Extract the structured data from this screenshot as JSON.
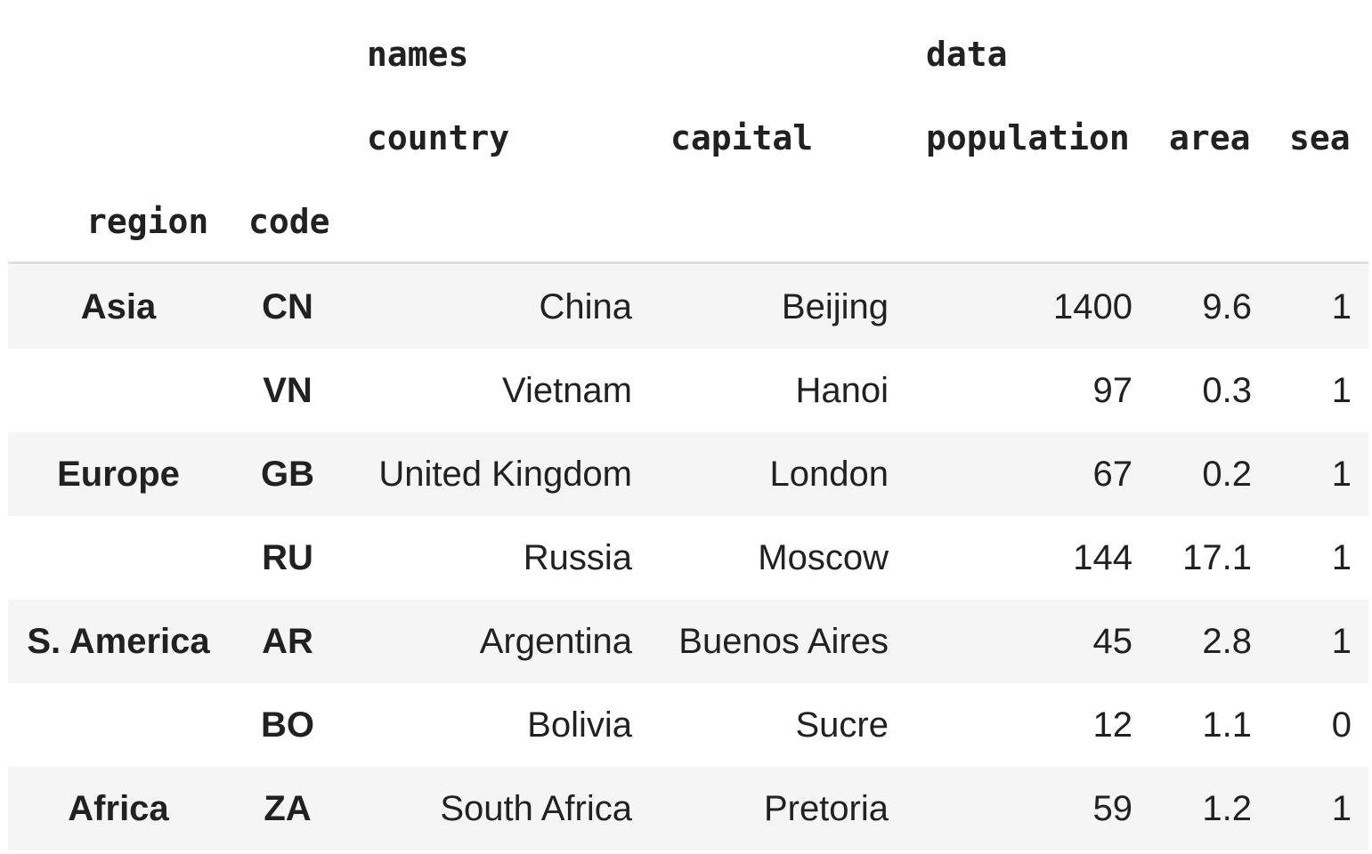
{
  "header": {
    "group_names": "names",
    "group_data": "data",
    "col_country": "country",
    "col_capital": "capital",
    "col_population": "population",
    "col_area": "area",
    "col_sea": "sea",
    "index_region": "region",
    "index_code": "code"
  },
  "rows": [
    {
      "region": "Asia",
      "code": "CN",
      "country": "China",
      "capital": "Beijing",
      "population": "1400",
      "area": "9.6",
      "sea": "1"
    },
    {
      "region": "",
      "code": "VN",
      "country": "Vietnam",
      "capital": "Hanoi",
      "population": "97",
      "area": "0.3",
      "sea": "1"
    },
    {
      "region": "Europe",
      "code": "GB",
      "country": "United Kingdom",
      "capital": "London",
      "population": "67",
      "area": "0.2",
      "sea": "1"
    },
    {
      "region": "",
      "code": "RU",
      "country": "Russia",
      "capital": "Moscow",
      "population": "144",
      "area": "17.1",
      "sea": "1"
    },
    {
      "region": "S. America",
      "code": "AR",
      "country": "Argentina",
      "capital": "Buenos Aires",
      "population": "45",
      "area": "2.8",
      "sea": "1"
    },
    {
      "region": "",
      "code": "BO",
      "country": "Bolivia",
      "capital": "Sucre",
      "population": "12",
      "area": "1.1",
      "sea": "0"
    },
    {
      "region": "Africa",
      "code": "ZA",
      "country": "South Africa",
      "capital": "Pretoria",
      "population": "59",
      "area": "1.2",
      "sea": "1"
    }
  ]
}
